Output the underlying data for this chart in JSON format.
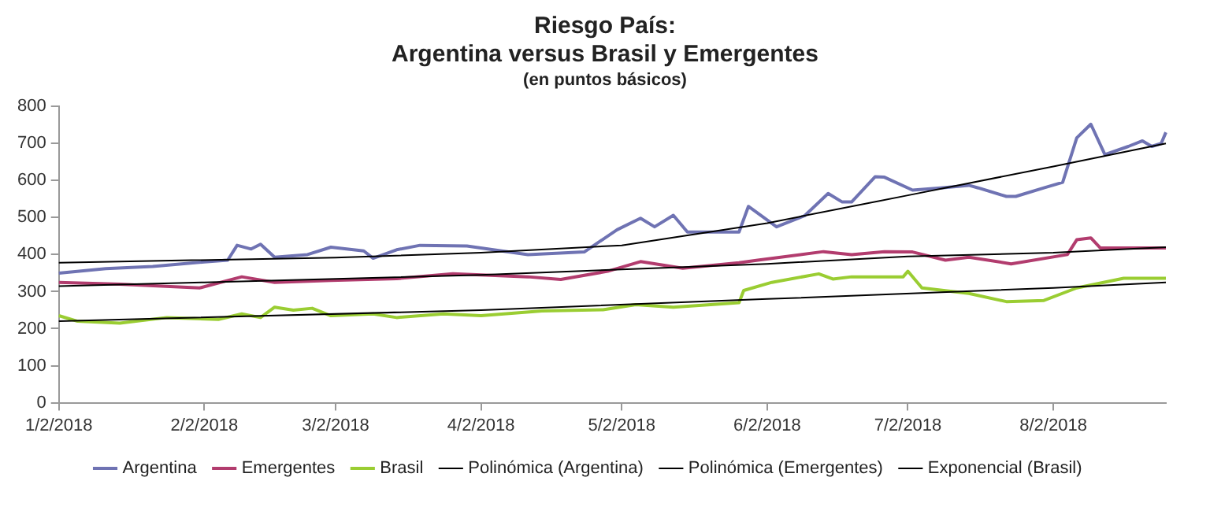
{
  "chart_data": {
    "type": "line",
    "title": "Riesgo País:\nArgentina versus Brasil y Emergentes",
    "subtitle": "(en puntos básicos)",
    "xlim": [
      "2018-01-02",
      "2018-08-26"
    ],
    "xticks": [
      {
        "value": "2018-01-02",
        "label": "1/2/2018"
      },
      {
        "value": "2018-02-02",
        "label": "2/2/2018"
      },
      {
        "value": "2018-03-02",
        "label": "3/2/2018"
      },
      {
        "value": "2018-04-02",
        "label": "4/2/2018"
      },
      {
        "value": "2018-05-02",
        "label": "5/2/2018"
      },
      {
        "value": "2018-06-02",
        "label": "6/2/2018"
      },
      {
        "value": "2018-07-02",
        "label": "7/2/2018"
      },
      {
        "value": "2018-08-02",
        "label": "8/2/2018"
      }
    ],
    "ylim": [
      0,
      800
    ],
    "yticks": [
      0,
      100,
      200,
      300,
      400,
      500,
      600,
      700,
      800
    ],
    "grid": false,
    "legend": "bottom",
    "marker": "none",
    "series": [
      {
        "name": "Argentina",
        "color": "#6f73b3",
        "x": [
          "2018-01-02",
          "2018-01-12",
          "2018-01-22",
          "2018-02-02",
          "2018-02-07",
          "2018-02-09",
          "2018-02-12",
          "2018-02-14",
          "2018-02-17",
          "2018-02-24",
          "2018-03-01",
          "2018-03-08",
          "2018-03-10",
          "2018-03-15",
          "2018-03-20",
          "2018-03-30",
          "2018-04-12",
          "2018-04-24",
          "2018-05-01",
          "2018-05-06",
          "2018-05-09",
          "2018-05-13",
          "2018-05-16",
          "2018-05-27",
          "2018-05-29",
          "2018-06-04",
          "2018-06-10",
          "2018-06-15",
          "2018-06-18",
          "2018-06-20",
          "2018-06-25",
          "2018-06-27",
          "2018-07-03",
          "2018-07-09",
          "2018-07-15",
          "2018-07-17",
          "2018-07-23",
          "2018-07-25",
          "2018-07-31",
          "2018-08-04",
          "2018-08-07",
          "2018-08-10",
          "2018-08-13",
          "2018-08-18",
          "2018-08-21",
          "2018-08-23",
          "2018-08-25",
          "2018-08-26"
        ],
        "values": [
          350,
          362,
          368,
          380,
          385,
          425,
          415,
          428,
          393,
          400,
          420,
          410,
          390,
          413,
          425,
          423,
          400,
          407,
          467,
          498,
          475,
          506,
          461,
          461,
          530,
          475,
          505,
          565,
          542,
          542,
          610,
          609,
          574,
          580,
          587,
          580,
          557,
          557,
          580,
          595,
          715,
          752,
          670,
          692,
          707,
          692,
          700,
          730
        ]
      },
      {
        "name": "Emergentes",
        "color": "#b23c6e",
        "x": [
          "2018-01-02",
          "2018-01-15",
          "2018-02-01",
          "2018-02-10",
          "2018-02-17",
          "2018-03-01",
          "2018-03-15",
          "2018-03-27",
          "2018-04-12",
          "2018-04-19",
          "2018-04-29",
          "2018-05-06",
          "2018-05-15",
          "2018-05-27",
          "2018-05-31",
          "2018-06-14",
          "2018-06-20",
          "2018-06-27",
          "2018-07-03",
          "2018-07-10",
          "2018-07-15",
          "2018-07-24",
          "2018-08-05",
          "2018-08-07",
          "2018-08-10",
          "2018-08-12",
          "2018-08-19",
          "2018-08-26"
        ],
        "values": [
          325,
          320,
          310,
          340,
          325,
          330,
          335,
          348,
          340,
          333,
          355,
          381,
          363,
          378,
          385,
          408,
          400,
          408,
          407,
          385,
          393,
          375,
          400,
          440,
          445,
          418,
          418,
          418
        ]
      },
      {
        "name": "Brasil",
        "color": "#9acd32",
        "x": [
          "2018-01-02",
          "2018-01-06",
          "2018-01-15",
          "2018-01-25",
          "2018-02-05",
          "2018-02-10",
          "2018-02-14",
          "2018-02-17",
          "2018-02-21",
          "2018-02-25",
          "2018-03-01",
          "2018-03-10",
          "2018-03-15",
          "2018-03-25",
          "2018-04-02",
          "2018-04-15",
          "2018-04-28",
          "2018-05-05",
          "2018-05-13",
          "2018-05-27",
          "2018-05-28",
          "2018-06-03",
          "2018-06-13",
          "2018-06-16",
          "2018-06-20",
          "2018-07-01",
          "2018-07-02",
          "2018-07-05",
          "2018-07-15",
          "2018-07-23",
          "2018-07-31",
          "2018-08-07",
          "2018-08-17",
          "2018-08-26"
        ],
        "values": [
          235,
          220,
          215,
          230,
          225,
          240,
          230,
          258,
          250,
          255,
          235,
          240,
          230,
          240,
          235,
          248,
          251,
          265,
          258,
          270,
          303,
          325,
          348,
          334,
          340,
          340,
          355,
          310,
          295,
          273,
          276,
          310,
          336,
          336
        ]
      },
      {
        "name": "Polinómica (Argentina)",
        "color": "#000000",
        "x": [
          "2018-01-02",
          "2018-03-02",
          "2018-04-02",
          "2018-05-02",
          "2018-06-02",
          "2018-07-02",
          "2018-08-02",
          "2018-08-26"
        ],
        "values": [
          378,
          392,
          405,
          425,
          485,
          560,
          638,
          700
        ]
      },
      {
        "name": "Polinómica (Emergentes)",
        "color": "#000000",
        "x": [
          "2018-01-02",
          "2018-02-02",
          "2018-04-02",
          "2018-05-02",
          "2018-06-02",
          "2018-07-02",
          "2018-08-02",
          "2018-08-26"
        ],
        "values": [
          315,
          325,
          345,
          360,
          375,
          395,
          405,
          420
        ]
      },
      {
        "name": "Exponencial (Brasil)",
        "color": "#000000",
        "x": [
          "2018-01-02",
          "2018-04-02",
          "2018-06-02",
          "2018-08-02",
          "2018-08-26"
        ],
        "values": [
          220,
          250,
          280,
          310,
          325
        ]
      }
    ]
  }
}
